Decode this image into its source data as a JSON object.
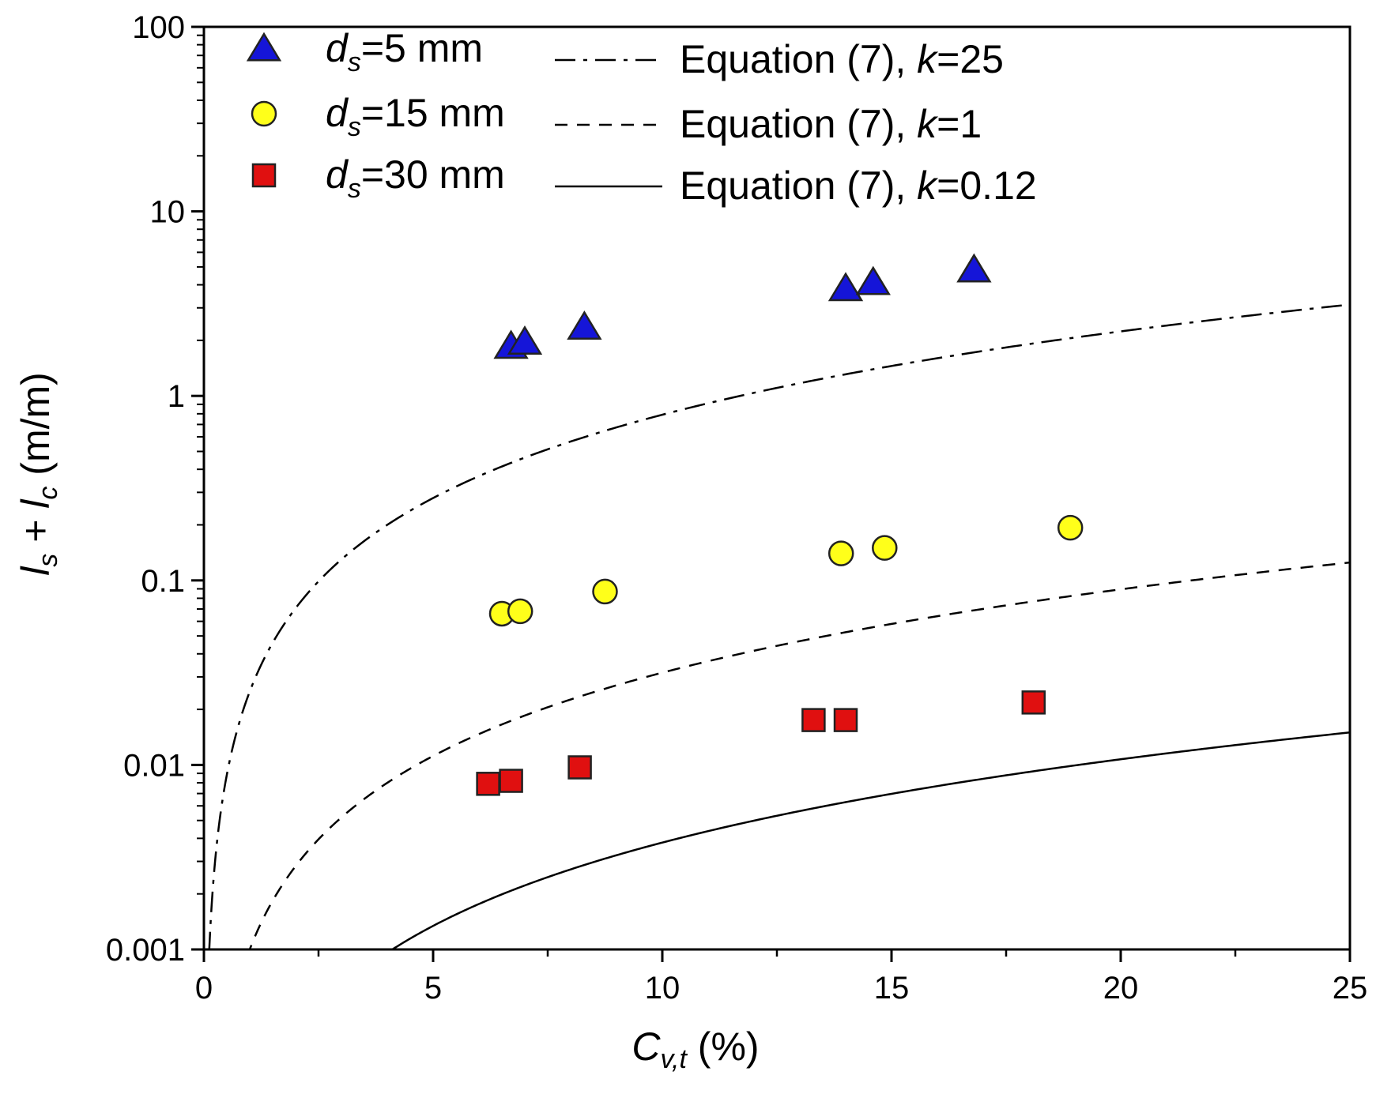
{
  "chart_data": {
    "type": "scatter",
    "title": "",
    "xlabel": {
      "main": "C",
      "sub": "v,t",
      "unit": " (%)"
    },
    "ylabel": {
      "a": "l",
      "a_sub": "s",
      "plus": " + ",
      "b": "l",
      "b_sub": "c",
      "unit": " (m/m)"
    },
    "xlim": [
      0,
      25
    ],
    "ylim": [
      0.001,
      100
    ],
    "yscale": "log",
    "x_ticks": [
      0,
      5,
      10,
      15,
      20,
      25
    ],
    "x_tick_labels": [
      "0",
      "5",
      "10",
      "15",
      "20",
      "25"
    ],
    "y_ticks": [
      0.001,
      0.01,
      0.1,
      1,
      10,
      100
    ],
    "y_tick_labels": [
      "0.001",
      "0.01",
      "0.1",
      "1",
      "10",
      "100"
    ],
    "legend_position": "top-left",
    "series": [
      {
        "name": "d_s=5 mm",
        "label_main": "d",
        "label_sub": "s",
        "label_rest": "=5 mm",
        "marker": "triangle",
        "color": "#1515d8",
        "x": [
          6.7,
          7.0,
          8.3,
          14.0,
          14.6,
          16.8
        ],
        "y": [
          1.85,
          1.95,
          2.35,
          3.8,
          4.1,
          4.8
        ]
      },
      {
        "name": "d_s=15 mm",
        "label_main": "d",
        "label_sub": "s",
        "label_rest": "=15 mm",
        "marker": "circle",
        "color": "#ffff1a",
        "x": [
          6.5,
          6.9,
          8.75,
          13.9,
          14.85,
          18.9
        ],
        "y": [
          0.066,
          0.068,
          0.087,
          0.14,
          0.15,
          0.193
        ]
      },
      {
        "name": "d_s=30 mm",
        "label_main": "d",
        "label_sub": "s",
        "label_rest": "=30 mm",
        "marker": "square",
        "color": "#e01010",
        "x": [
          6.2,
          6.7,
          8.2,
          13.3,
          14.0,
          18.1
        ],
        "y": [
          0.0079,
          0.0082,
          0.0097,
          0.0175,
          0.0175,
          0.0218
        ]
      }
    ],
    "curves": [
      {
        "name": "Equation (7), k=25",
        "label_pre": "Equation (7), ",
        "label_k": "k",
        "label_rest": "=25",
        "style": "dashdot",
        "k": 25,
        "formula": "y = k * x^1.5 * 1e-3 (x in %)"
      },
      {
        "name": "Equation (7), k=1",
        "label_pre": "Equation (7), ",
        "label_k": "k",
        "label_rest": "=1",
        "style": "dashed",
        "k": 1,
        "formula": "y = k * x^1.5 * 1e-3 (x in %)"
      },
      {
        "name": "Equation (7), k=0.12",
        "label_pre": "Equation (7), ",
        "label_k": "k",
        "label_rest": "=0.12",
        "style": "solid",
        "k": 0.12,
        "formula": "y = k * x^1.5 * 1e-3 (x in %)"
      }
    ]
  }
}
